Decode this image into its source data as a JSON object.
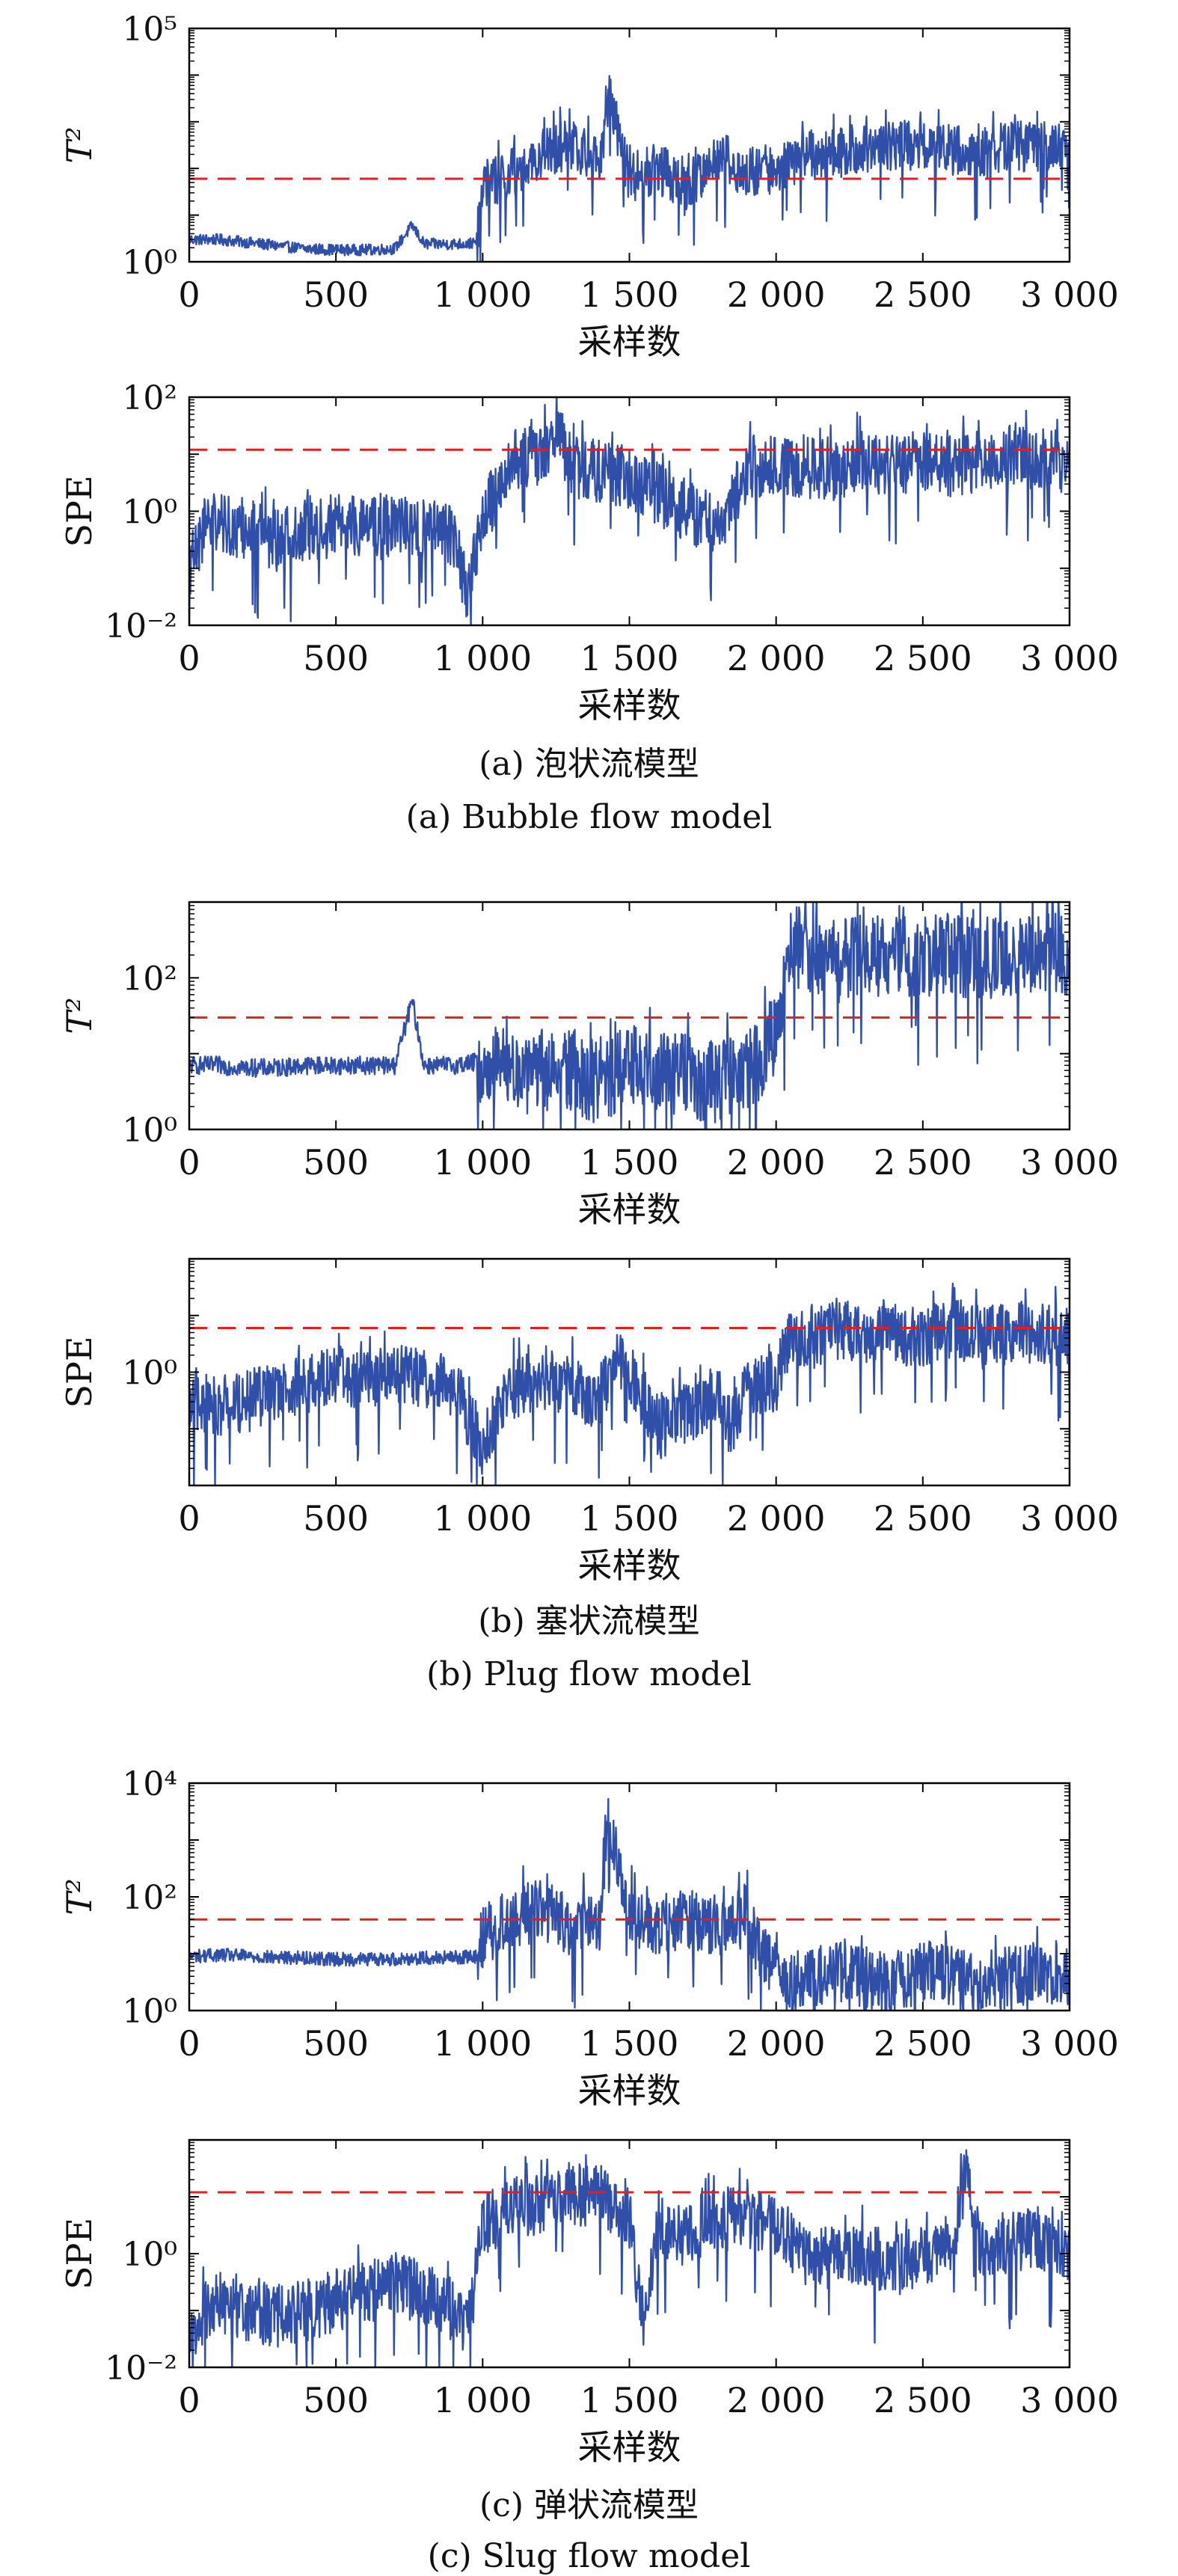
{
  "colors": {
    "series": "#2f4fa8",
    "limit": "#e02020",
    "axis": "#000000"
  },
  "captions": [
    {
      "zh": "(a) 泡状流模型",
      "en": "(a) Bubble flow model"
    },
    {
      "zh": "(b) 塞状流模型",
      "en": "(b) Plug flow model"
    },
    {
      "zh": "(c) 弹状流模型",
      "en": "(c) Slug flow model"
    }
  ],
  "chart_data": [
    {
      "id": "a-t2",
      "type": "line",
      "xlabel": "采样数",
      "ylabel": "T²",
      "yscale": "log",
      "xlim": [
        0,
        3000
      ],
      "ylim": [
        1,
        100000
      ],
      "xticks": [
        0,
        500,
        1000,
        1500,
        2000,
        2500,
        3000
      ],
      "xticklabels": [
        "0",
        "500",
        "1 000",
        "1 500",
        "2 000",
        "2 500",
        "3 000"
      ],
      "yticks": [
        1,
        100000
      ],
      "yticklabels": [
        "10⁰",
        "10⁵"
      ],
      "control_limit": 60,
      "series": [
        {
          "x": [
            0,
            100,
            200,
            300,
            400,
            500,
            600,
            700,
            760,
            800,
            900,
            980,
            1000,
            1100,
            1200,
            1300,
            1400,
            1430,
            1500,
            1600,
            1700,
            1800,
            1900,
            2000,
            2100,
            2200,
            2300,
            2400,
            2500,
            2600,
            2700,
            2800,
            2900,
            3000
          ],
          "values": [
            3,
            3,
            2.6,
            2.2,
            1.9,
            1.8,
            1.8,
            1.9,
            6,
            2.4,
            2.4,
            2.5,
            40,
            80,
            200,
            300,
            150,
            4000,
            60,
            100,
            30,
            200,
            80,
            100,
            200,
            200,
            300,
            300,
            300,
            250,
            200,
            300,
            300,
            300
          ]
        }
      ]
    },
    {
      "id": "a-spe",
      "type": "line",
      "xlabel": "采样数",
      "ylabel": "SPE",
      "yscale": "log",
      "xlim": [
        0,
        3000
      ],
      "ylim": [
        0.01,
        100
      ],
      "xticks": [
        0,
        500,
        1000,
        1500,
        2000,
        2500,
        3000
      ],
      "xticklabels": [
        "0",
        "500",
        "1 000",
        "1 500",
        "2 000",
        "2 500",
        "3 000"
      ],
      "yticks": [
        0.01,
        1,
        100
      ],
      "yticklabels": [
        "10⁻²",
        "10⁰",
        "10²"
      ],
      "control_limit": 12,
      "series": [
        {
          "x": [
            0,
            50,
            100,
            200,
            300,
            400,
            500,
            600,
            700,
            800,
            900,
            950,
            1000,
            1050,
            1100,
            1200,
            1250,
            1300,
            1400,
            1500,
            1600,
            1700,
            1800,
            1900,
            2000,
            2100,
            2200,
            2300,
            2400,
            2500,
            2600,
            2700,
            2800,
            2900,
            3000
          ],
          "values": [
            0.1,
            0.5,
            0.6,
            0.5,
            0.3,
            0.4,
            0.6,
            0.5,
            0.5,
            0.5,
            0.4,
            0.03,
            1,
            2,
            8,
            10,
            30,
            6,
            5,
            4,
            2,
            1,
            0.5,
            5,
            6,
            6,
            5,
            8,
            6,
            8,
            6,
            8,
            10,
            8,
            7
          ]
        }
      ]
    },
    {
      "id": "b-t2",
      "type": "line",
      "xlabel": "采样数",
      "ylabel": "T²",
      "yscale": "log",
      "xlim": [
        0,
        3000
      ],
      "ylim": [
        1,
        1000
      ],
      "xticks": [
        0,
        500,
        1000,
        1500,
        2000,
        2500,
        3000
      ],
      "xticklabels": [
        "0",
        "500",
        "1 000",
        "1 500",
        "2 000",
        "2 500",
        "3 000"
      ],
      "yticks": [
        1,
        100
      ],
      "yticklabels": [
        "10⁰",
        "10²"
      ],
      "control_limit": 30,
      "series": [
        {
          "x": [
            0,
            100,
            200,
            300,
            400,
            500,
            600,
            700,
            760,
            800,
            900,
            1000,
            1100,
            1200,
            1300,
            1400,
            1500,
            1600,
            1700,
            1800,
            1900,
            1960,
            2000,
            2050,
            2100,
            2200,
            2300,
            2400,
            2500,
            2600,
            2700,
            2800,
            2900,
            3000
          ],
          "values": [
            7,
            7,
            6.5,
            6.5,
            7,
            7,
            7,
            7,
            50,
            7,
            7,
            8,
            6,
            5,
            6,
            4,
            8,
            6,
            5,
            4,
            6,
            10,
            20,
            300,
            200,
            160,
            200,
            180,
            200,
            200,
            180,
            170,
            250,
            200
          ]
        }
      ]
    },
    {
      "id": "b-spe",
      "type": "line",
      "xlabel": "采样数",
      "ylabel": "SPE",
      "yscale": "log",
      "xlim": [
        0,
        3000
      ],
      "ylim": [
        0.01,
        100
      ],
      "xticks": [
        0,
        500,
        1000,
        1500,
        2000,
        2500,
        3000
      ],
      "xticklabels": [
        "0",
        "500",
        "1 000",
        "1 500",
        "2 000",
        "2 500",
        "3 000"
      ],
      "yticks": [
        1
      ],
      "yticklabels": [
        "10⁰"
      ],
      "control_limit": 6,
      "series": [
        {
          "x": [
            0,
            100,
            200,
            300,
            400,
            500,
            600,
            700,
            800,
            900,
            1000,
            1050,
            1100,
            1200,
            1300,
            1400,
            1450,
            1500,
            1600,
            1700,
            1800,
            1850,
            1900,
            2000,
            2050,
            2100,
            2200,
            2300,
            2400,
            2500,
            2600,
            2700,
            2800,
            2900,
            3000
          ],
          "values": [
            0.3,
            0.25,
            0.3,
            0.5,
            0.6,
            0.8,
            0.7,
            0.9,
            0.8,
            0.6,
            0.05,
            0.2,
            0.5,
            0.8,
            0.6,
            0.3,
            2,
            1,
            0.1,
            0.2,
            0.4,
            0.1,
            0.6,
            0.7,
            5,
            3,
            6,
            4,
            5,
            4,
            6,
            4,
            5,
            5,
            4
          ]
        }
      ]
    },
    {
      "id": "c-t2",
      "type": "line",
      "xlabel": "采样数",
      "ylabel": "T²",
      "yscale": "log",
      "xlim": [
        0,
        3000
      ],
      "ylim": [
        1,
        10000
      ],
      "xticks": [
        0,
        500,
        1000,
        1500,
        2000,
        2500,
        3000
      ],
      "xticklabels": [
        "0",
        "500",
        "1 000",
        "1 500",
        "2 000",
        "2 500",
        "3 000"
      ],
      "yticks": [
        1,
        100,
        10000
      ],
      "yticklabels": [
        "10⁰",
        "10²",
        "10⁴"
      ],
      "control_limit": 40,
      "series": [
        {
          "x": [
            0,
            100,
            200,
            300,
            400,
            500,
            600,
            700,
            800,
            900,
            980,
            1000,
            1100,
            1200,
            1300,
            1400,
            1430,
            1500,
            1600,
            1700,
            1800,
            1900,
            1950,
            2000,
            2100,
            2200,
            2300,
            2400,
            2500,
            2600,
            2700,
            2800,
            2900,
            3000
          ],
          "values": [
            9,
            9.5,
            9,
            8.5,
            8.5,
            8,
            8,
            8,
            8.5,
            8.5,
            9,
            20,
            40,
            60,
            30,
            40,
            2500,
            50,
            30,
            40,
            30,
            40,
            10,
            4,
            3,
            5,
            4,
            3,
            5,
            4,
            3,
            4,
            5,
            4
          ]
        }
      ]
    },
    {
      "id": "c-spe",
      "type": "line",
      "xlabel": "采样数",
      "ylabel": "SPE",
      "yscale": "log",
      "xlim": [
        0,
        3000
      ],
      "ylim": [
        0.01,
        100
      ],
      "xticks": [
        0,
        500,
        1000,
        1500,
        2000,
        2500,
        3000
      ],
      "xticklabels": [
        "0",
        "500",
        "1 000",
        "1 500",
        "2 000",
        "2 500",
        "3 000"
      ],
      "yticks": [
        0.01,
        1
      ],
      "yticklabels": [
        "10⁻²",
        "10⁰"
      ],
      "control_limit": 12,
      "series": [
        {
          "x": [
            0,
            50,
            100,
            200,
            300,
            400,
            500,
            600,
            700,
            800,
            900,
            950,
            1000,
            1100,
            1200,
            1300,
            1400,
            1450,
            1500,
            1550,
            1600,
            1700,
            1800,
            1900,
            2000,
            2100,
            2200,
            2300,
            2400,
            2500,
            2600,
            2650,
            2700,
            2800,
            2900,
            3000
          ],
          "values": [
            0.03,
            0.1,
            0.15,
            0.1,
            0.08,
            0.1,
            0.15,
            0.2,
            0.3,
            0.2,
            0.1,
            0.05,
            3,
            6,
            8,
            10,
            12,
            6,
            4,
            0.05,
            3,
            2,
            4,
            4,
            3,
            1,
            0.8,
            1,
            0.6,
            1,
            1.2,
            30,
            1,
            1.5,
            2,
            0.8
          ]
        }
      ]
    }
  ]
}
